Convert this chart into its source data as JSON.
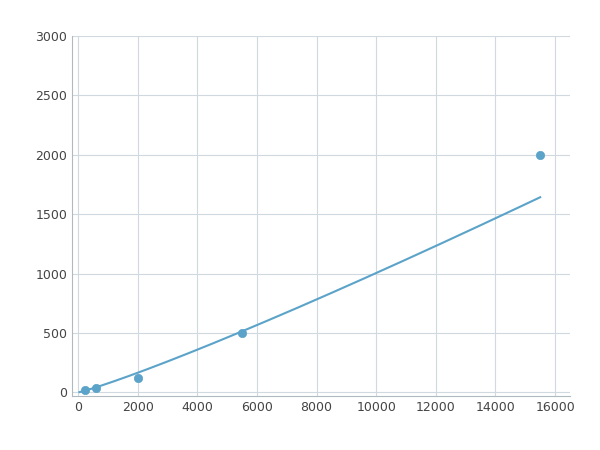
{
  "x": [
    250,
    600,
    2000,
    5500,
    15500
  ],
  "y": [
    20,
    40,
    120,
    500,
    2000
  ],
  "line_color": "#5BA3C9",
  "marker_color": "#5BA3C9",
  "marker_facecolor": "#5BA3C9",
  "marker_size": 6,
  "line_width": 1.5,
  "xlim": [
    -200,
    16500
  ],
  "ylim": [
    -30,
    3000
  ],
  "xticks": [
    0,
    2000,
    4000,
    6000,
    8000,
    10000,
    12000,
    14000,
    16000
  ],
  "yticks": [
    0,
    500,
    1000,
    1500,
    2000,
    2500,
    3000
  ],
  "grid_color": "#d0d8e0",
  "bg_color": "#ffffff",
  "fig_bg_color": "#ffffff"
}
